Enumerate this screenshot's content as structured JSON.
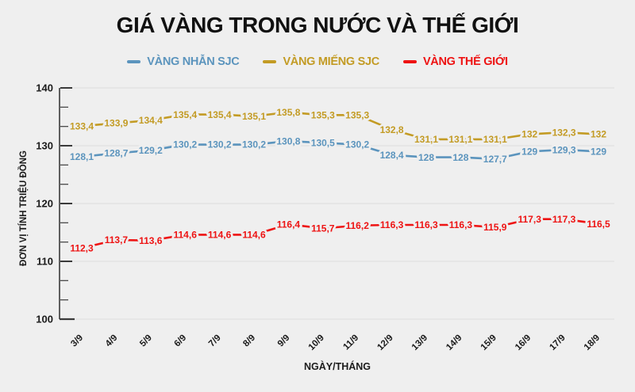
{
  "title": "GIÁ VÀNG TRONG NƯỚC VÀ THẾ GIỚI",
  "chart_data": {
    "type": "line",
    "x_categories": [
      "3/9",
      "4/9",
      "5/9",
      "6/9",
      "7/9",
      "8/9",
      "9/9",
      "10/9",
      "11/9",
      "12/9",
      "13/9",
      "14/9",
      "15/9",
      "16/9",
      "17/9",
      "18/9"
    ],
    "xlabel": "NGÀY/THÁNG",
    "ylabel": "ĐƠN VỊ TÍNH TRIỆU ĐỒNG",
    "ylim": [
      100,
      140
    ],
    "yticks": [
      100,
      110,
      120,
      130,
      140
    ],
    "minor_ticks_per_interval": 2,
    "grid": "horizontal-major",
    "legend_position": "top",
    "decimal_separator": ",",
    "data_labels": "on-point",
    "colors": {
      "background": "#efefef",
      "gridline": "#dcdcdc",
      "axis": "#3a3a3a",
      "tick_text": "#1b1b1b",
      "title_text": "#111111"
    },
    "series": [
      {
        "name": "VÀNG NHẪN SJC",
        "color": "#5b94bd",
        "values": [
          128.1,
          128.7,
          129.2,
          130.2,
          130.2,
          130.2,
          130.8,
          130.5,
          130.2,
          128.4,
          128,
          128,
          127.7,
          129,
          129.3,
          129
        ]
      },
      {
        "name": "VÀNG MIẾNG SJC",
        "color": "#c39b24",
        "values": [
          133.4,
          133.9,
          134.4,
          135.4,
          135.4,
          135.1,
          135.8,
          135.3,
          135.3,
          132.8,
          131.1,
          131.1,
          131.1,
          132,
          132.3,
          132
        ]
      },
      {
        "name": "VÀNG THẾ GIỚI",
        "color": "#ee1313",
        "values": [
          112.3,
          113.7,
          113.6,
          114.6,
          114.6,
          114.6,
          116.4,
          115.7,
          116.2,
          116.3,
          116.3,
          116.3,
          115.9,
          117.3,
          117.3,
          116.5
        ]
      }
    ]
  }
}
